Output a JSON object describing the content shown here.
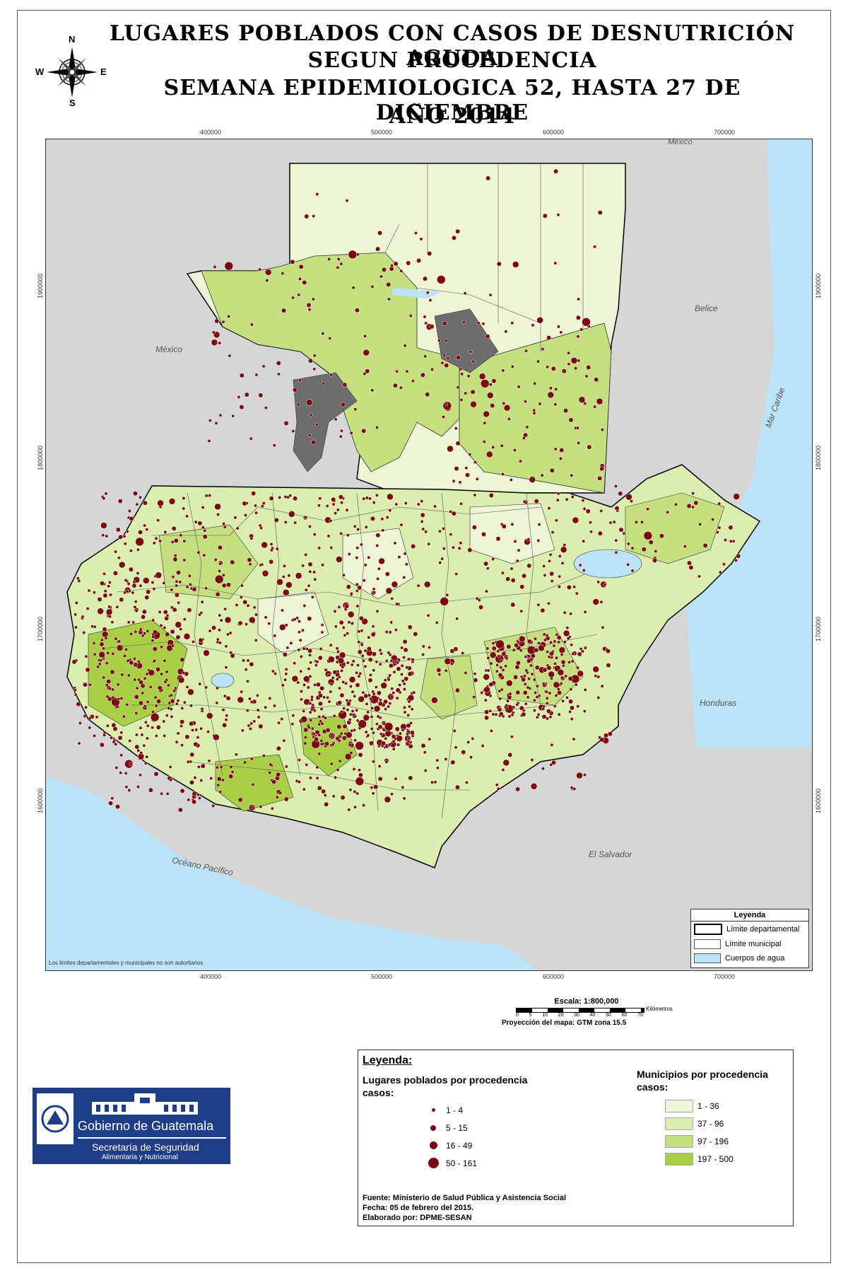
{
  "title": {
    "line1": "Lugares Poblados con Casos de Desnutrición Aguda",
    "line2": "Segun Procedencia",
    "line3": "Semana Epidemiologica 52,  hasta  27 de diciembre",
    "line4": "Año 2014"
  },
  "compass": {
    "n": "N",
    "s": "S",
    "e": "E",
    "w": "W"
  },
  "axis": {
    "x_ticks": [
      "400000",
      "500000",
      "600000",
      "700000"
    ],
    "y_ticks": [
      "1900000",
      "1800000",
      "1700000",
      "1600000"
    ]
  },
  "map_labels": {
    "mexico_top": "México",
    "mexico_left": "México",
    "belice": "Belice",
    "mar_caribe": "Mar Caribe",
    "honduras": "Honduras",
    "el_salvador": "El Salvador",
    "oceano_pacifico": "Océano Pacífico",
    "disclaimer": "Los limites departamentales y municipales no son autoritarios"
  },
  "map_legend": {
    "title": "Leyenda",
    "items": [
      {
        "label": "Límite departamental",
        "swatch": "#ffffff",
        "border": "#000000"
      },
      {
        "label": "Límite municipal",
        "swatch": "#ffffff",
        "border": "#555555"
      },
      {
        "label": "Cuerpos de agua",
        "swatch": "#bde3f9",
        "border": "#555555"
      }
    ]
  },
  "scale": {
    "label": "Escala: 1:800,000",
    "units": "Kilómetros",
    "ticks": [
      "0",
      "5",
      "10",
      "20",
      "30",
      "40",
      "50",
      "60",
      "70"
    ],
    "projection": "Proyección del mapa: GTM zona 15.5"
  },
  "legend": {
    "heading": "Leyenda:",
    "points_title_1": "Lugares poblados por procedencia",
    "points_title_2": "casos:",
    "points": [
      {
        "label": "1 - 4",
        "size": 1
      },
      {
        "label": "5 - 15",
        "size": 2
      },
      {
        "label": "16 - 49",
        "size": 3
      },
      {
        "label": "50 - 161",
        "size": 4
      }
    ],
    "muni_title_1": "Municipios por procedencia",
    "muni_title_2": "casos:",
    "muni": [
      {
        "label": "1 - 36",
        "color": "#eef5d6"
      },
      {
        "label": "37 - 96",
        "color": "#dbeeb0"
      },
      {
        "label": "97 - 196",
        "color": "#c4e081"
      },
      {
        "label": "197 - 500",
        "color": "#a8cf45"
      }
    ],
    "source_1": "Fuente: Ministerio de Salud Pública y Asistencia Social",
    "source_2": "Fecha: 05 de febrero del 2015.",
    "source_3": "Elaborado por: DPME-SESAN"
  },
  "logo": {
    "line1": "Gobierno de Guatemala",
    "line2": "Secretaría de Seguridad",
    "line3": "Alimentaria y Nutricional",
    "color": "#1f3c86"
  },
  "colors": {
    "dot": "#7a0a12",
    "water": "#bde3f9",
    "land_outside": "#d6d6d6"
  }
}
